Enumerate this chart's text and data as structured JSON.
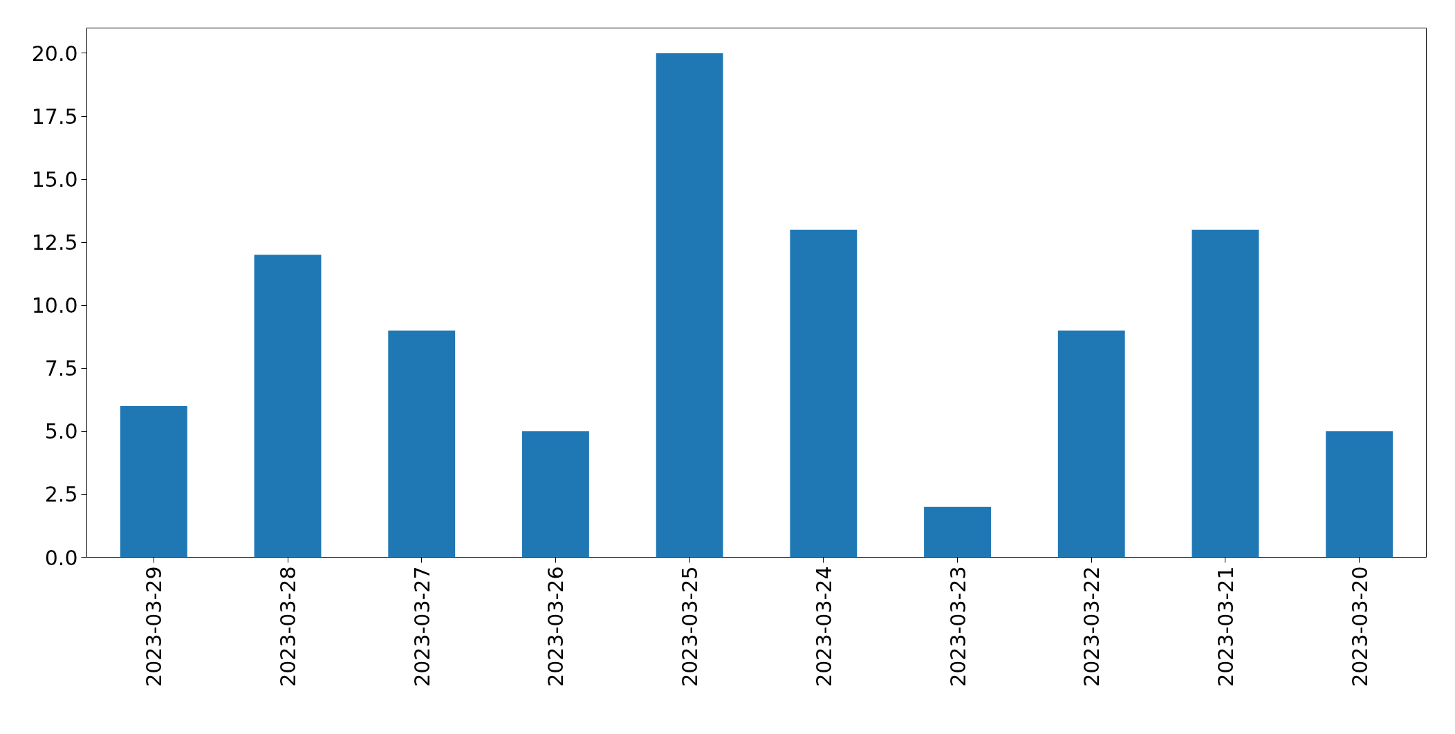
{
  "chart_data": {
    "type": "bar",
    "categories": [
      "2023-03-29",
      "2023-03-28",
      "2023-03-27",
      "2023-03-26",
      "2023-03-25",
      "2023-03-24",
      "2023-03-23",
      "2023-03-22",
      "2023-03-21",
      "2023-03-20"
    ],
    "values": [
      6,
      12,
      9,
      5,
      20,
      13,
      2,
      9,
      13,
      5
    ],
    "color": "#1f77b4",
    "ylim": [
      0,
      21
    ],
    "yticks": [
      {
        "value": 0,
        "label": "0.0"
      },
      {
        "value": 2.5,
        "label": "2.5"
      },
      {
        "value": 5,
        "label": "5.0"
      },
      {
        "value": 7.5,
        "label": "7.5"
      },
      {
        "value": 10,
        "label": "10.0"
      },
      {
        "value": 12.5,
        "label": "12.5"
      },
      {
        "value": 15,
        "label": "15.0"
      },
      {
        "value": 17.5,
        "label": "17.5"
      },
      {
        "value": 20,
        "label": "20.0"
      }
    ],
    "grid": false
  }
}
